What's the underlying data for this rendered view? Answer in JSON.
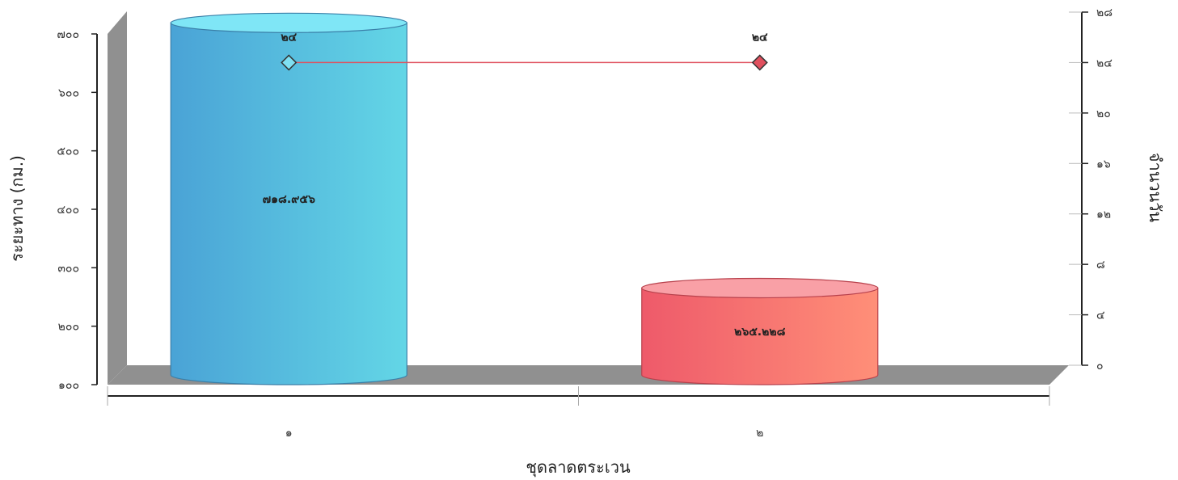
{
  "chart_data": {
    "type": "bar",
    "style": "3d-cylinder-with-line-overlay",
    "categories": [
      "๑",
      "๒"
    ],
    "xlabel": "ชุดลาดตระเวน",
    "ylabel": "ระยะทาง (กม.)",
    "y2label": "จำนวนวัน",
    "ylim": [
      100,
      700
    ],
    "y2lim": [
      0,
      28
    ],
    "yticks": [
      "๑๐๐",
      "๒๐๐",
      "๓๐๐",
      "๔๐๐",
      "๕๐๐",
      "๖๐๐",
      "๗๐๐"
    ],
    "y2ticks": [
      "๐",
      "๔",
      "๘",
      "๑๒",
      "๑๖",
      "๒๐",
      "๒๔",
      "๒๘"
    ],
    "grid": false,
    "series": [
      {
        "kind": "bar",
        "axis": "left",
        "values": [
          718.956,
          265.228
        ],
        "labels": [
          "๗๑๘.๙๕๖",
          "๒๖๕.๒๒๘"
        ],
        "colors": [
          {
            "side_from": "#4aa3d6",
            "side_to": "#63d6e6",
            "top": "#7fe6f6",
            "stroke": "#3a7fa8"
          },
          {
            "side_from": "#ee5a6a",
            "side_to": "#ff8f78",
            "top": "#f9a0a6",
            "stroke": "#b8414c"
          }
        ]
      },
      {
        "kind": "line",
        "axis": "right",
        "values": [
          24,
          24
        ],
        "labels": [
          "๒๔",
          "๒๔"
        ],
        "color": "#e0505e",
        "marker_fills": [
          "#7fe0f2",
          "#e0505e"
        ]
      }
    ],
    "floor_color": "#8f8f8f"
  }
}
